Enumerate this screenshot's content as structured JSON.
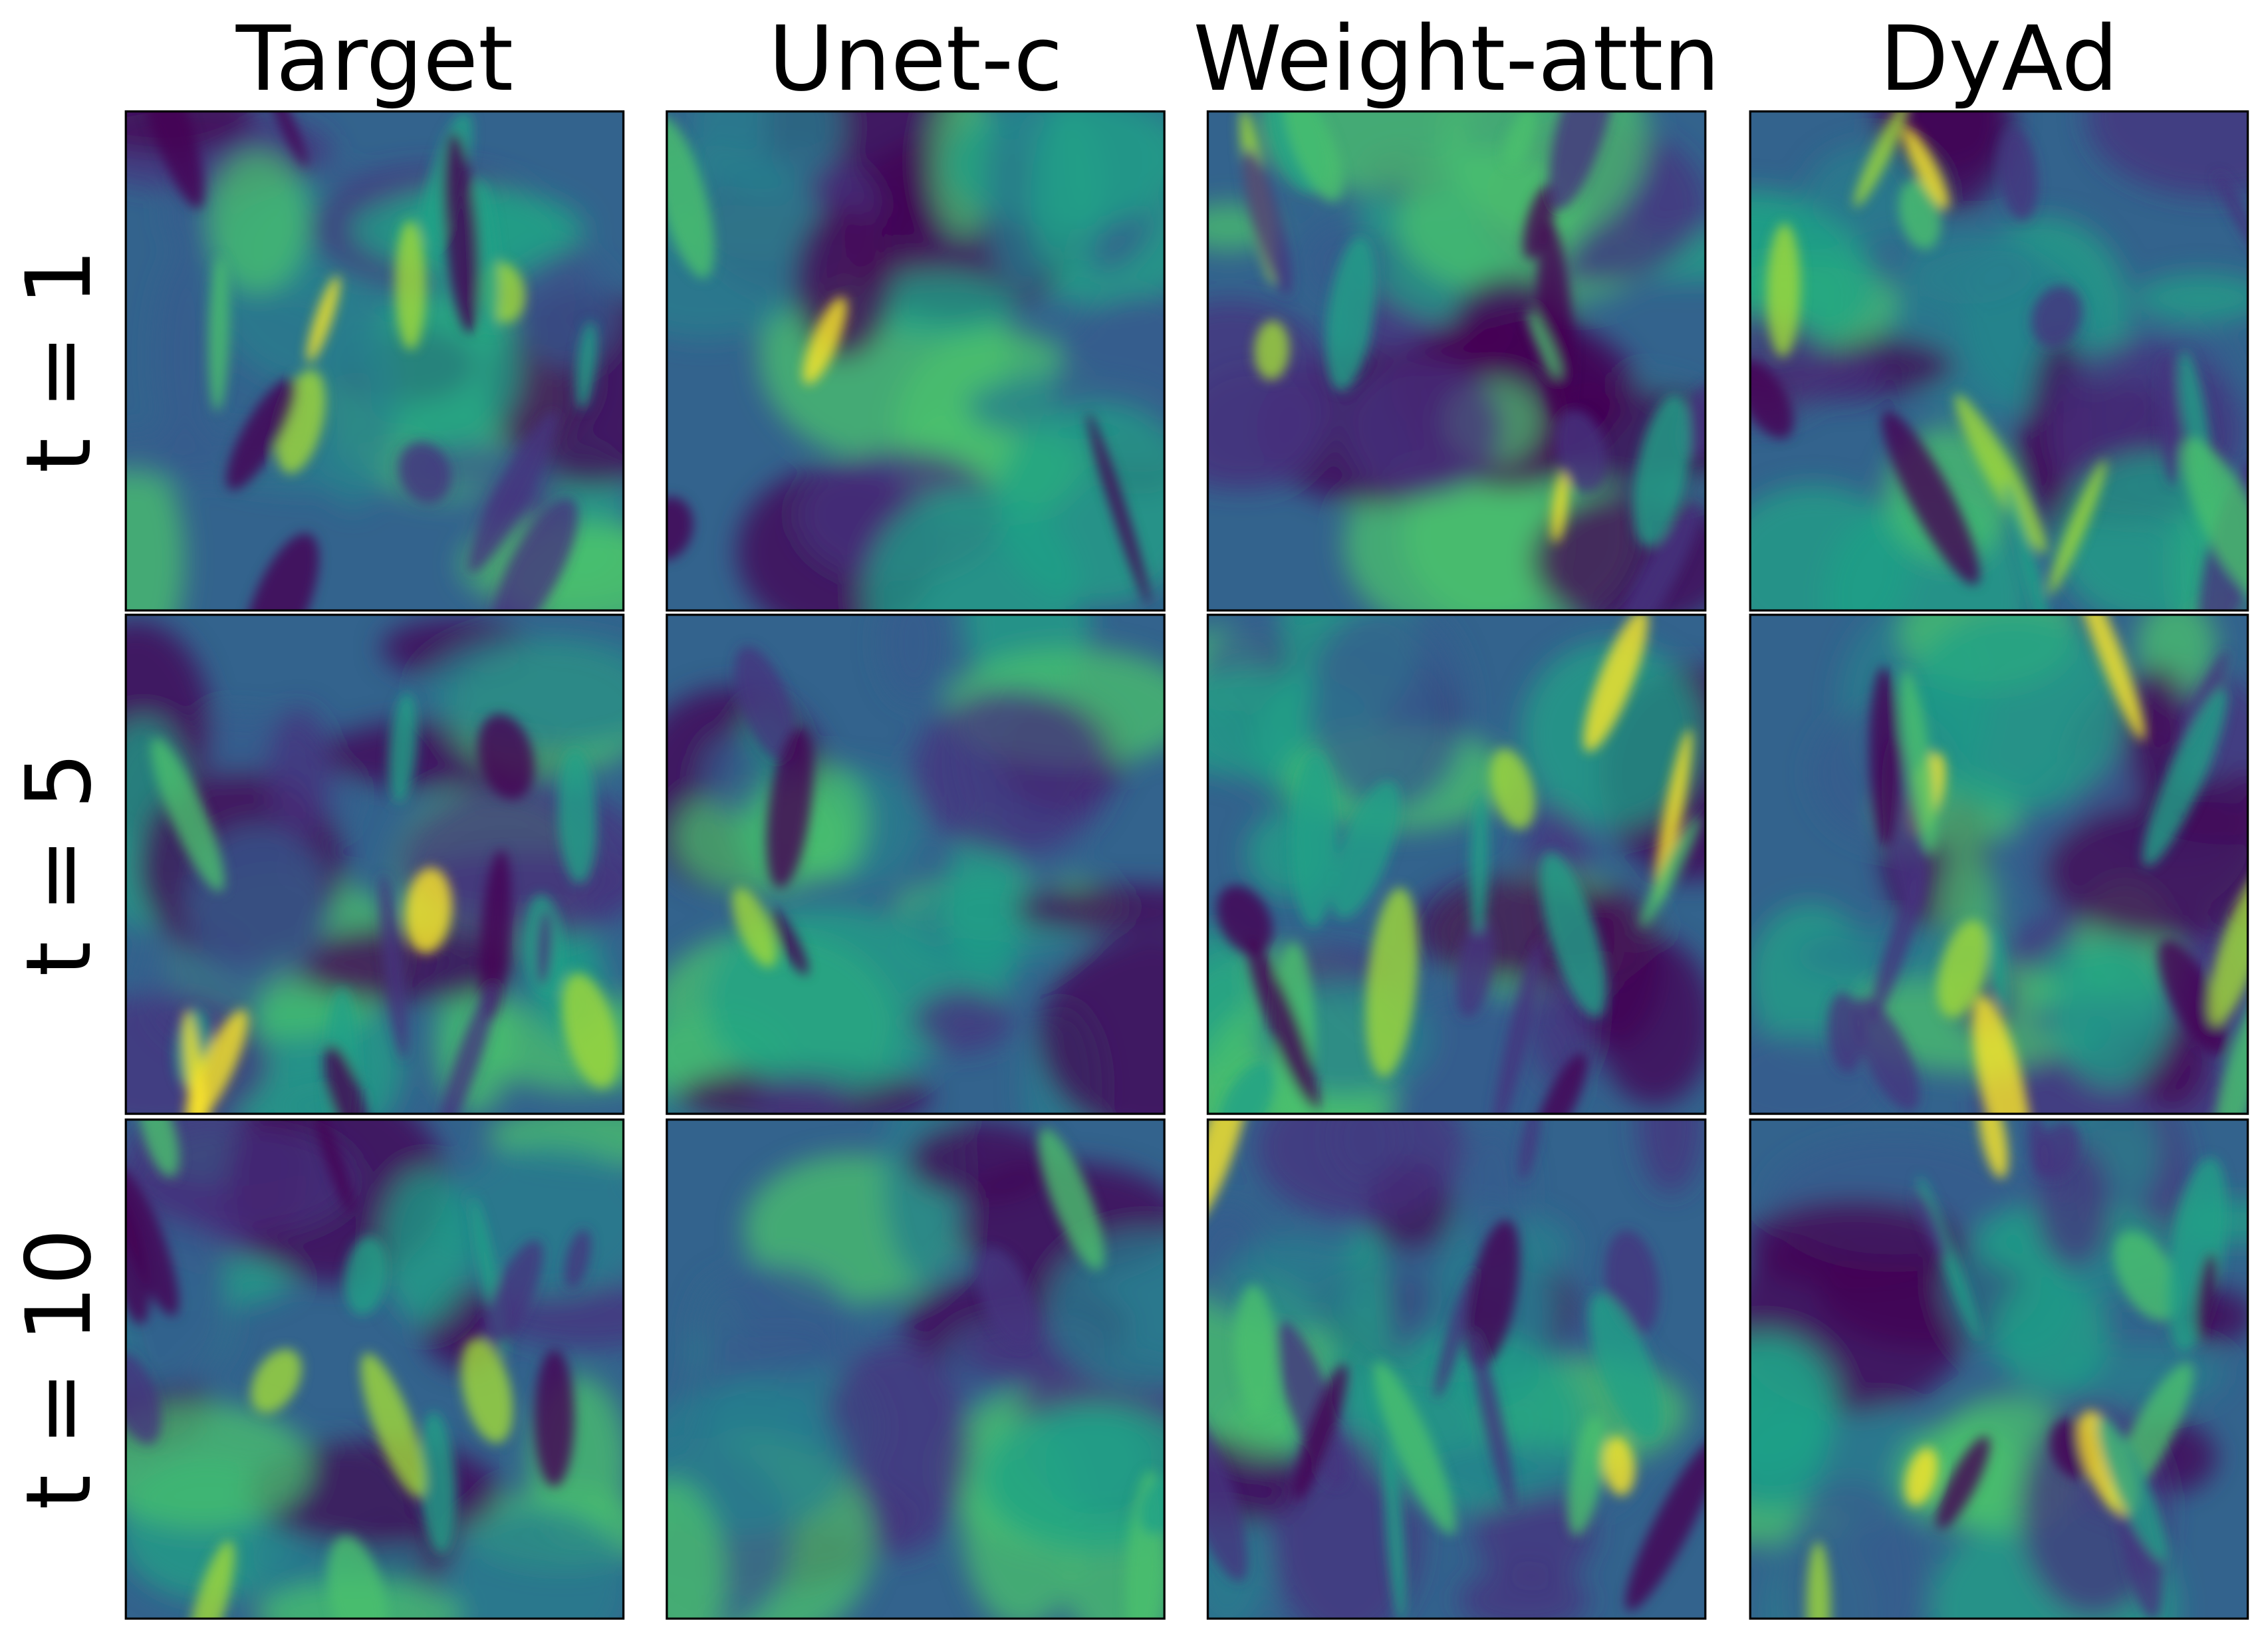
{
  "columns": [
    "Target",
    "Unet-c",
    "Weight-attn",
    "DyAd"
  ],
  "rows": [
    "t = 1",
    "t = 5",
    "t = 10"
  ]
}
